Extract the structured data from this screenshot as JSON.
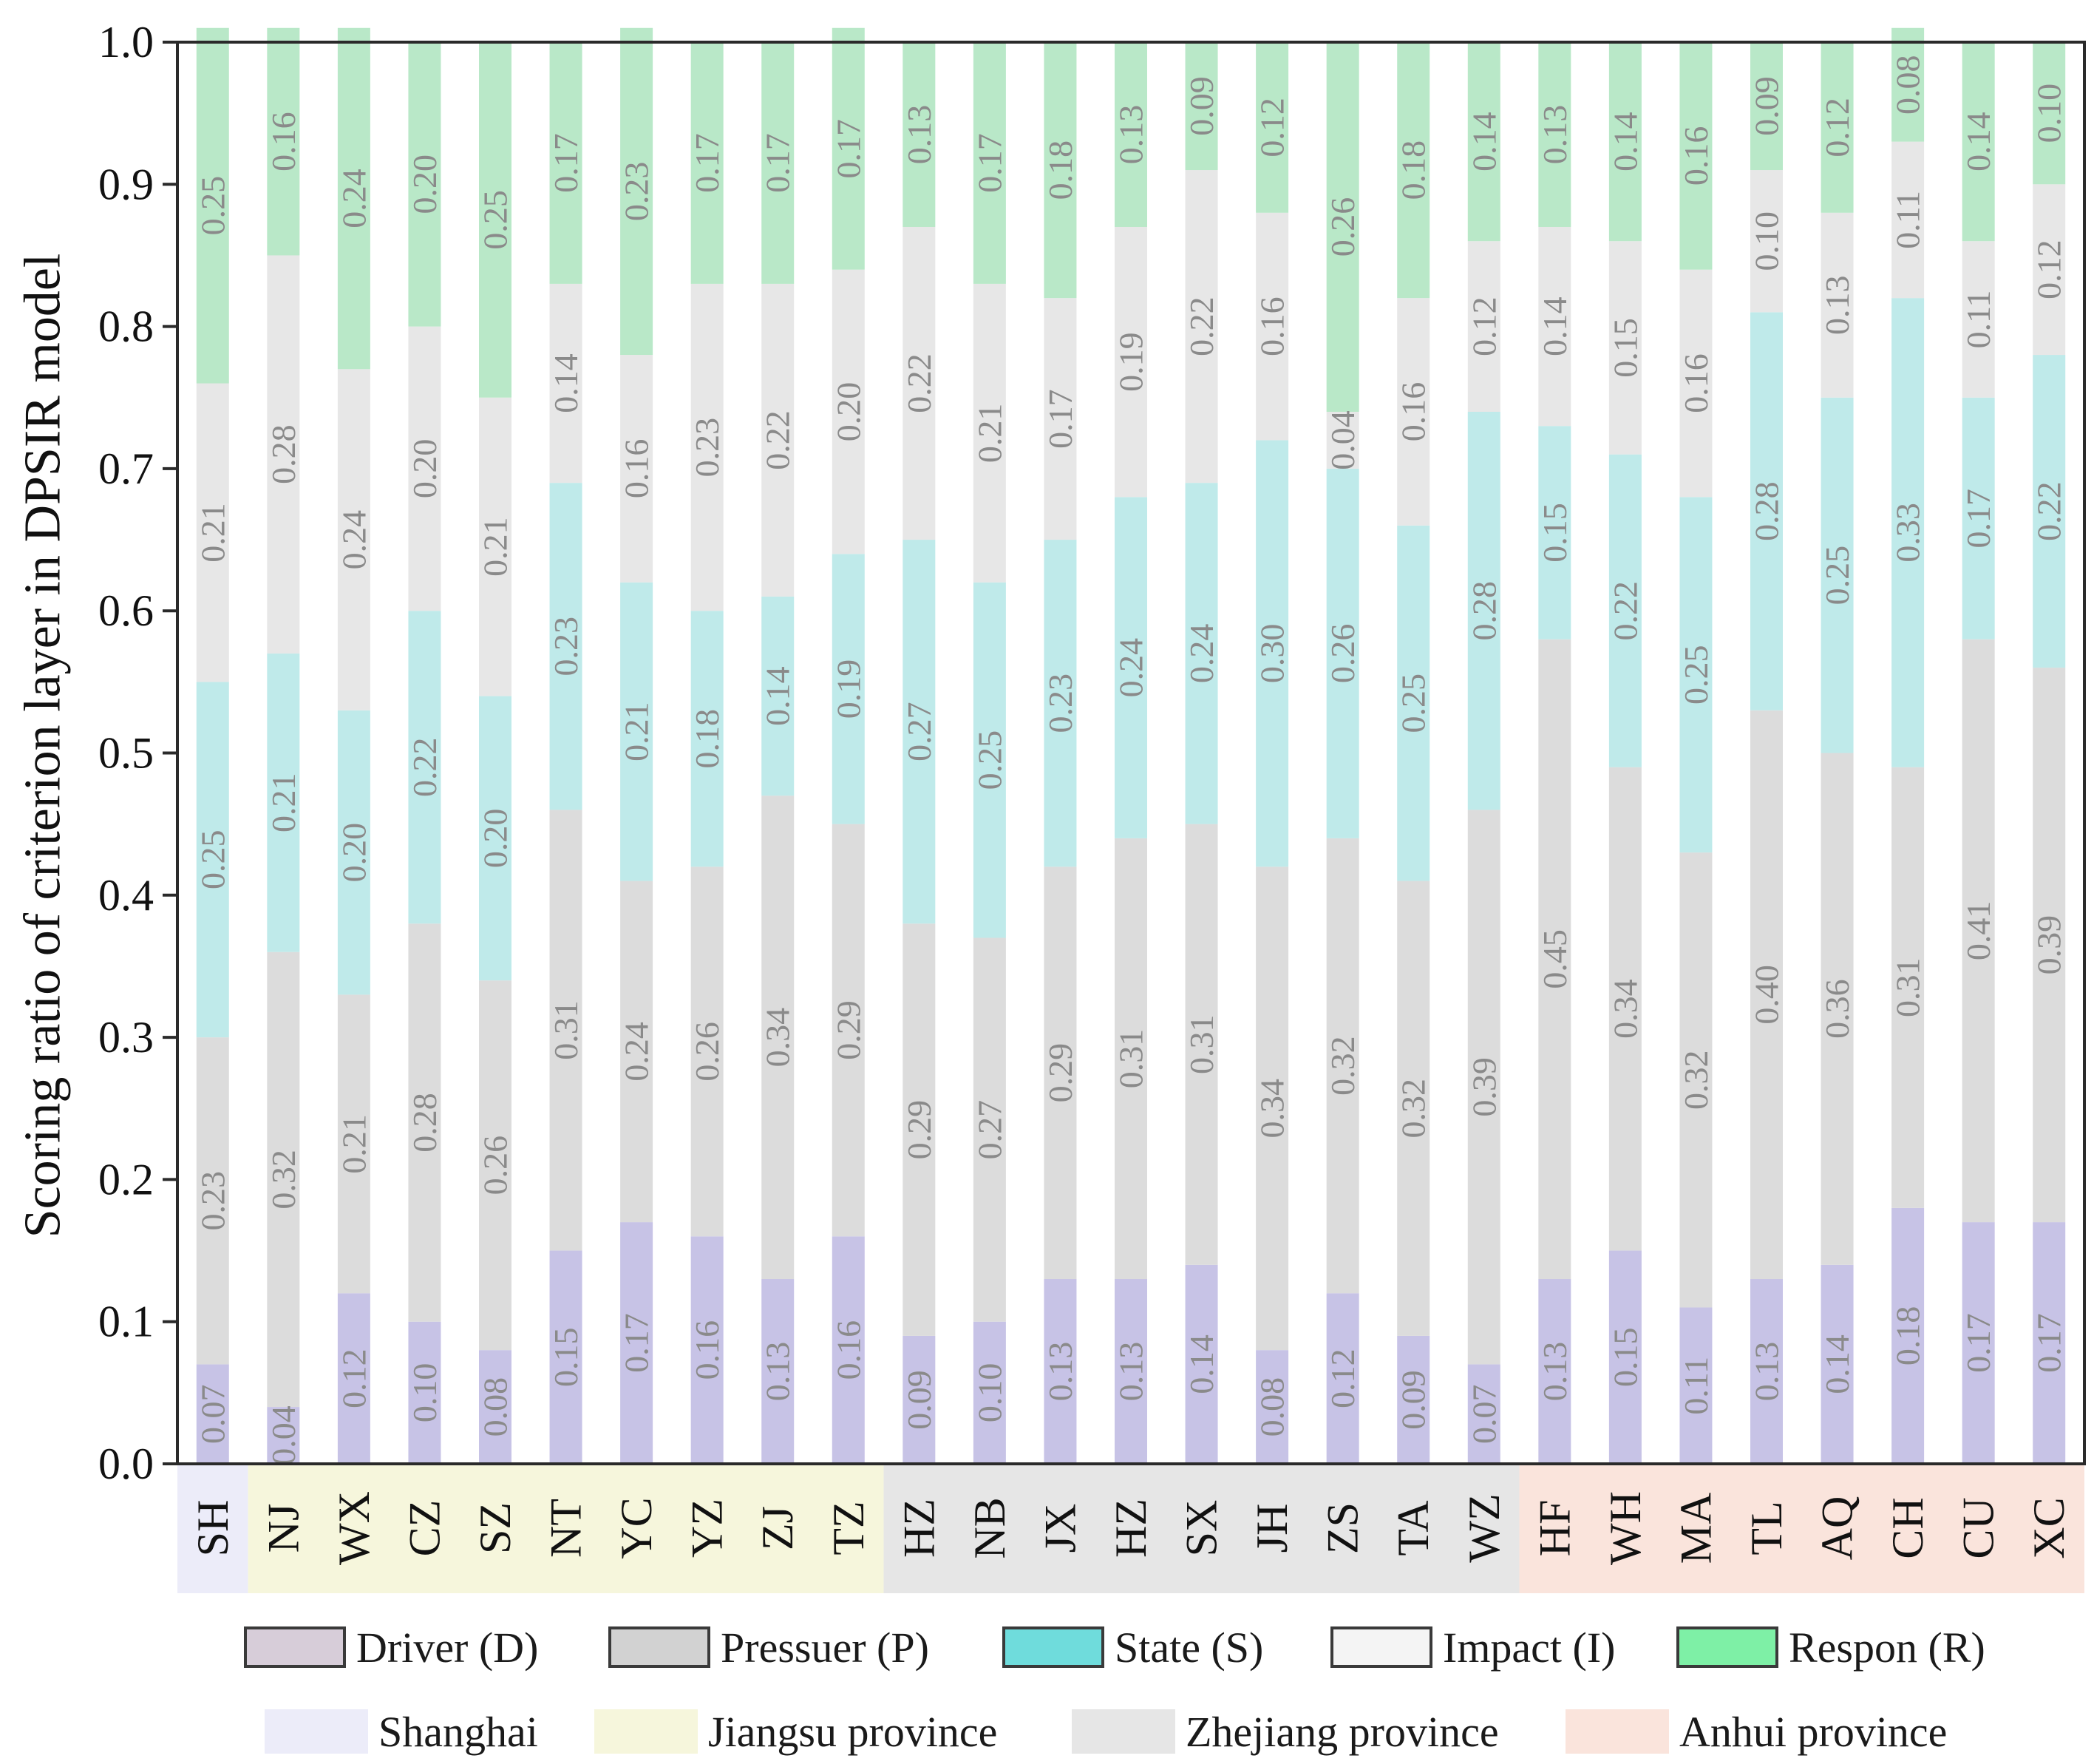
{
  "chart_data": {
    "type": "bar",
    "stacked": true,
    "ylabel": "Scoring  ratio of  criterion layer in DPSIR model",
    "ylim": [
      0,
      1.0
    ],
    "yticks": [
      "0.0",
      "0.1",
      "0.2",
      "0.3",
      "0.4",
      "0.5",
      "0.6",
      "0.7",
      "0.8",
      "0.9",
      "1.0"
    ],
    "categories": [
      "SH",
      "NJ",
      "WX",
      "CZ",
      "SZ",
      "NT",
      "YC",
      "YZ",
      "ZJ",
      "TZ",
      "HZ",
      "NB",
      "JX",
      "HZ",
      "SX",
      "JH",
      "ZS",
      "TA",
      "WZ",
      "HF",
      "WH",
      "MA",
      "TL",
      "AQ",
      "CH",
      "CU",
      "XC"
    ],
    "series": [
      {
        "name": "Driver (D)",
        "color": "#c7c3e6",
        "values": [
          0.07,
          0.04,
          0.12,
          0.1,
          0.08,
          0.15,
          0.17,
          0.16,
          0.13,
          0.16,
          0.09,
          0.1,
          0.13,
          0.13,
          0.14,
          0.08,
          0.12,
          0.09,
          0.07,
          0.13,
          0.15,
          0.11,
          0.13,
          0.14,
          0.18,
          0.17,
          0.17
        ]
      },
      {
        "name": "Pressuer (P)",
        "color": "#dcdcdc",
        "values": [
          0.23,
          0.32,
          0.21,
          0.28,
          0.26,
          0.31,
          0.24,
          0.26,
          0.34,
          0.29,
          0.29,
          0.27,
          0.29,
          0.31,
          0.31,
          0.34,
          0.32,
          0.32,
          0.39,
          0.45,
          0.34,
          0.32,
          0.4,
          0.36,
          0.31,
          0.41,
          0.39
        ]
      },
      {
        "name": "State (S)",
        "color": "#bfeaea",
        "values": [
          0.25,
          0.21,
          0.2,
          0.22,
          0.2,
          0.23,
          0.21,
          0.18,
          0.14,
          0.19,
          0.27,
          0.25,
          0.23,
          0.24,
          0.24,
          0.3,
          0.26,
          0.25,
          0.28,
          0.15,
          0.22,
          0.25,
          0.28,
          0.25,
          0.33,
          0.17,
          0.22
        ]
      },
      {
        "name": "Impact (I)",
        "color": "#e7e7e7",
        "values": [
          0.21,
          0.28,
          0.24,
          0.2,
          0.21,
          0.14,
          0.16,
          0.23,
          0.22,
          0.2,
          0.22,
          0.21,
          0.17,
          0.19,
          0.22,
          0.16,
          0.04,
          0.16,
          0.12,
          0.14,
          0.15,
          0.16,
          0.1,
          0.13,
          0.11,
          0.11,
          0.12
        ]
      },
      {
        "name": "Respon (R)",
        "color": "#b9e8c8",
        "values": [
          0.25,
          0.16,
          0.24,
          0.2,
          0.25,
          0.17,
          0.23,
          0.17,
          0.17,
          0.17,
          0.13,
          0.17,
          0.18,
          0.13,
          0.09,
          0.12,
          0.26,
          0.18,
          0.14,
          0.13,
          0.14,
          0.16,
          0.09,
          0.12,
          0.08,
          0.14,
          0.1
        ]
      }
    ],
    "regions": [
      {
        "name": "Shanghai",
        "color": "#ececf9",
        "categories": [
          "SH"
        ]
      },
      {
        "name": "Jiangsu province",
        "color": "#f6f6dc",
        "categories": [
          "NJ",
          "WX",
          "CZ",
          "SZ",
          "NT",
          "YC",
          "YZ",
          "ZJ",
          "TZ"
        ]
      },
      {
        "name": "Zhejiang province",
        "color": "#e6e6e6",
        "categories": [
          "HZ",
          "NB",
          "JX",
          "HZ",
          "SX",
          "JH",
          "ZS",
          "TA",
          "WZ"
        ]
      },
      {
        "name": "Anhui province",
        "color": "#fae4dc",
        "categories": [
          "HF",
          "WH",
          "MA",
          "TL",
          "AQ",
          "CH",
          "CU",
          "XC"
        ]
      }
    ],
    "legend": {
      "placement": "bottom"
    },
    "grid": false
  },
  "legend_swatch_colors": {
    "Driver (D)": "#d7cdd9",
    "Pressuer (P)": "#d2d2d2",
    "State (S)": "#6fdcdc",
    "Impact (I)": "#f4f4f4",
    "Respon (R)": "#7ef0a6"
  }
}
